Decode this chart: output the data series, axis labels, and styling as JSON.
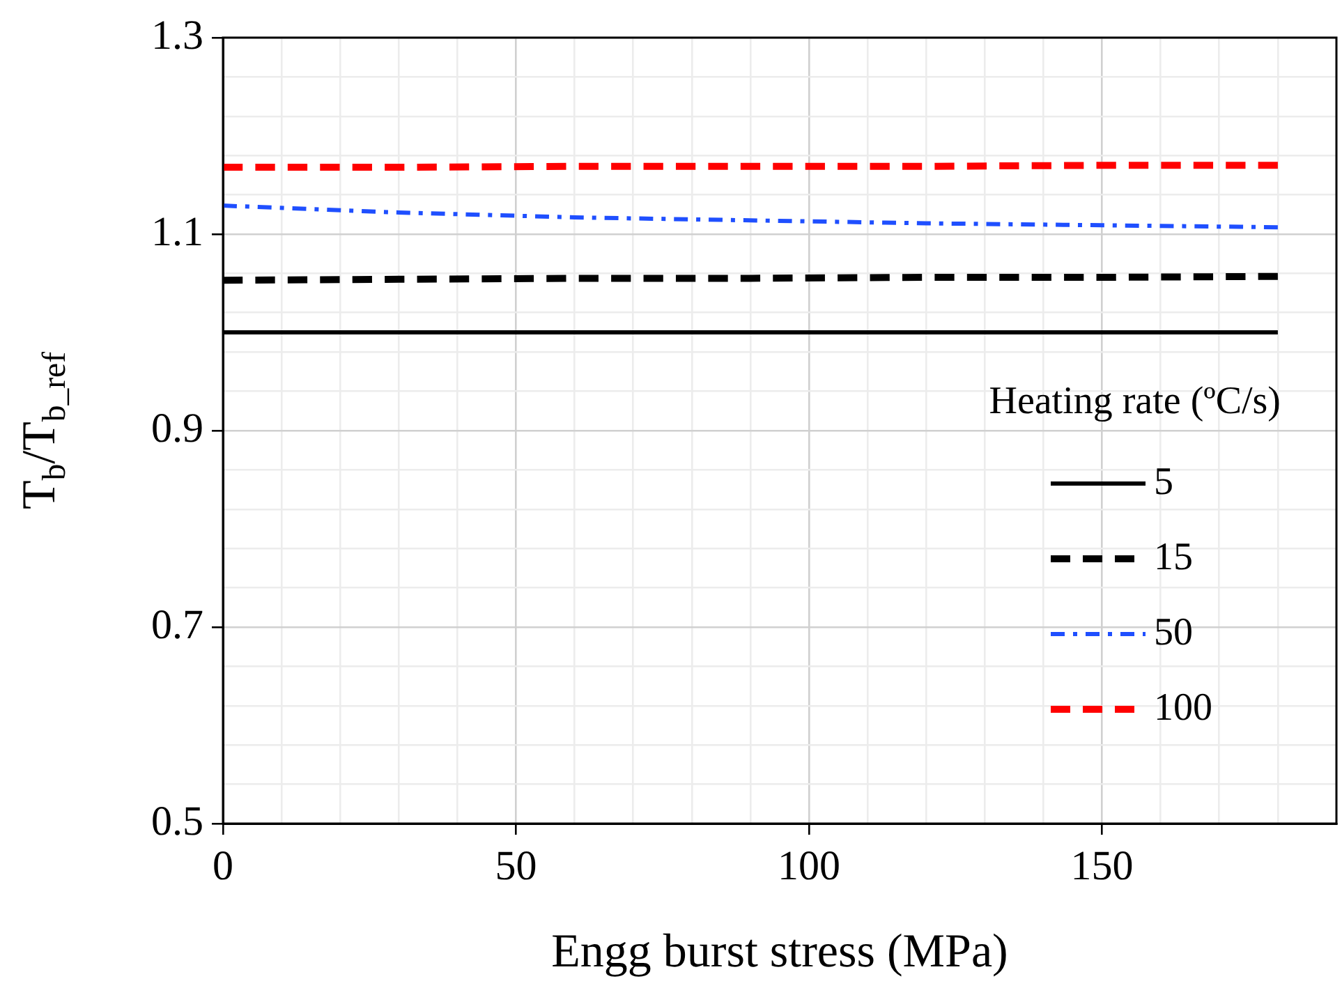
{
  "chart_data": {
    "type": "line",
    "xlabel": "Engg burst stress (MPa)",
    "ylabel": "T$_{b}$/T$_{b_ref}$",
    "legend_title": "Heating rate (ºC/s)",
    "legend": "right",
    "grid": true,
    "marker": "none",
    "xlim": [
      0,
      190
    ],
    "xticks": [
      0,
      {
        "value": 10,
        "label": null
      },
      {
        "value": 20,
        "label": null
      },
      {
        "value": 30,
        "label": null
      },
      {
        "value": 40,
        "label": null
      },
      50,
      {
        "value": 60,
        "label": null
      },
      {
        "value": 70,
        "label": null
      },
      {
        "value": 80,
        "label": null
      },
      {
        "value": 90,
        "label": null
      },
      100,
      {
        "value": 110,
        "label": null
      },
      {
        "value": 120,
        "label": null
      },
      {
        "value": 130,
        "label": null
      },
      {
        "value": 140,
        "label": null
      },
      150,
      {
        "value": 160,
        "label": null
      },
      {
        "value": 170,
        "label": null
      },
      {
        "value": 180,
        "label": null
      }
    ],
    "ylim": [
      0.5,
      1.3
    ],
    "yticks": [
      {
        "value": 0.5,
        "label": "0.5"
      },
      {
        "value": 0.54,
        "label": null
      },
      {
        "value": 0.58,
        "label": null
      },
      {
        "value": 0.62,
        "label": null
      },
      {
        "value": 0.66,
        "label": null
      },
      {
        "value": 0.7,
        "label": "0.7"
      },
      {
        "value": 0.74,
        "label": null
      },
      {
        "value": 0.78,
        "label": null
      },
      {
        "value": 0.82,
        "label": null
      },
      {
        "value": 0.86,
        "label": null
      },
      {
        "value": 0.9,
        "label": "0.9"
      },
      {
        "value": 0.94,
        "label": null
      },
      {
        "value": 0.98,
        "label": null
      },
      {
        "value": 1.02,
        "label": null
      },
      {
        "value": 1.06,
        "label": null
      },
      {
        "value": 1.1,
        "label": "1.1"
      },
      {
        "value": 1.14,
        "label": null
      },
      {
        "value": 1.18,
        "label": null
      },
      {
        "value": 1.22,
        "label": null
      },
      {
        "value": 1.26,
        "label": null
      },
      {
        "value": 1.3,
        "label": "1.3"
      }
    ],
    "x": [
      0,
      30,
      60,
      90,
      120,
      150,
      180
    ],
    "series": [
      {
        "name": "5",
        "color": "#000000",
        "line_style": "solid",
        "values": [
          1.0,
          1.0,
          1.0,
          1.0,
          1.0,
          1.0,
          1.0
        ]
      },
      {
        "name": "15",
        "color": "#000000",
        "line_style": "dashed",
        "values": [
          1.053,
          1.054,
          1.055,
          1.055,
          1.056,
          1.056,
          1.057
        ]
      },
      {
        "name": "50",
        "color": "#1f4fff",
        "line_style": "dotted",
        "values": [
          1.129,
          1.122,
          1.117,
          1.114,
          1.111,
          1.109,
          1.107
        ]
      },
      {
        "name": "100",
        "color": "#ff0000",
        "line_style": "dashed",
        "values": [
          1.168,
          1.168,
          1.169,
          1.169,
          1.169,
          1.17,
          1.17
        ]
      }
    ]
  }
}
